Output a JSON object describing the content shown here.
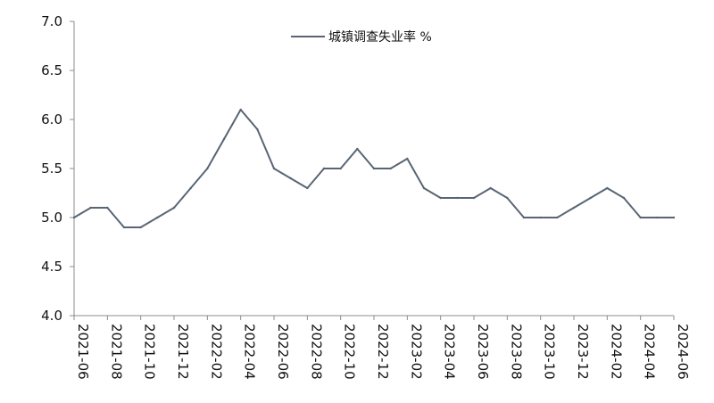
{
  "chart_data": {
    "type": "line",
    "title": "",
    "xlabel": "",
    "ylabel": "",
    "ylim": [
      4.0,
      7.0
    ],
    "yticks": [
      "4.0",
      "4.5",
      "5.0",
      "5.5",
      "6.0",
      "6.5",
      "7.0"
    ],
    "grid": false,
    "legend_position": "top-center",
    "x": [
      "2021-06",
      "2021-07",
      "2021-08",
      "2021-09",
      "2021-10",
      "2021-11",
      "2021-12",
      "2022-01",
      "2022-02",
      "2022-03",
      "2022-04",
      "2022-05",
      "2022-06",
      "2022-07",
      "2022-08",
      "2022-09",
      "2022-10",
      "2022-11",
      "2022-12",
      "2023-01",
      "2023-02",
      "2023-03",
      "2023-04",
      "2023-05",
      "2023-06",
      "2023-07",
      "2023-08",
      "2023-09",
      "2023-10",
      "2023-11",
      "2023-12",
      "2024-01",
      "2024-02",
      "2024-03",
      "2024-04",
      "2024-05",
      "2024-06"
    ],
    "xticks": [
      "2021-06",
      "2021-08",
      "2021-10",
      "2021-12",
      "2022-02",
      "2022-04",
      "2022-06",
      "2022-08",
      "2022-10",
      "2022-12",
      "2023-02",
      "2023-04",
      "2023-06",
      "2023-08",
      "2023-10",
      "2023-12",
      "2024-02",
      "2024-04",
      "2024-06"
    ],
    "series": [
      {
        "name": "城镇调查失业率 %",
        "color": "#596575",
        "values": [
          5.0,
          5.1,
          5.1,
          4.9,
          4.9,
          5.0,
          5.1,
          5.3,
          5.5,
          5.8,
          6.1,
          5.9,
          5.5,
          5.4,
          5.3,
          5.5,
          5.5,
          5.7,
          5.5,
          5.5,
          5.6,
          5.3,
          5.2,
          5.2,
          5.2,
          5.3,
          5.2,
          5.0,
          5.0,
          5.0,
          5.1,
          5.2,
          5.3,
          5.2,
          5.0,
          5.0,
          5.0
        ]
      }
    ]
  }
}
